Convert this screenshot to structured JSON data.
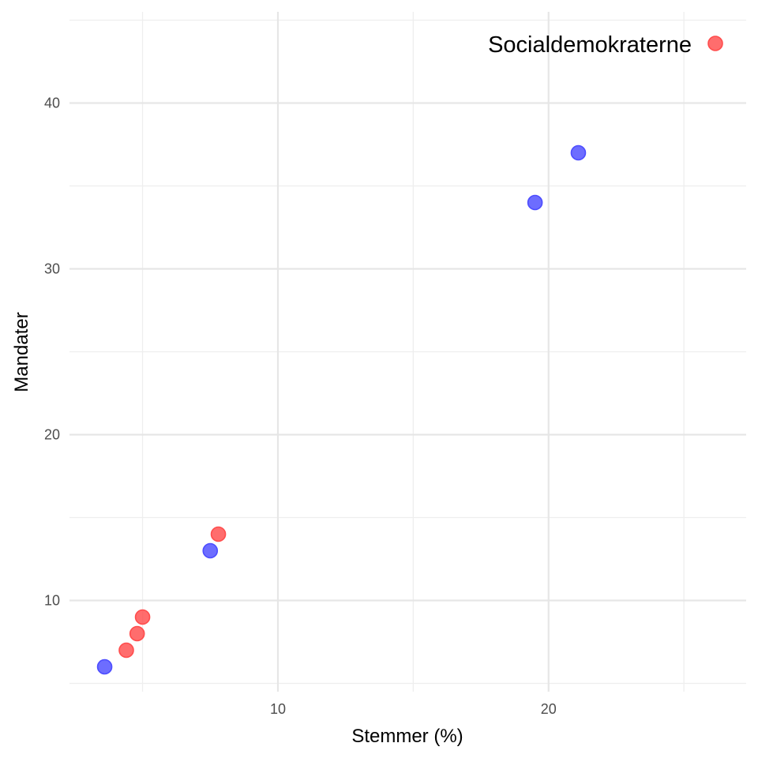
{
  "chart_data": {
    "type": "scatter",
    "title": "",
    "xlabel": "Stemmer (%)",
    "ylabel": "Mandater",
    "xlim": [
      2.3,
      27.3
    ],
    "ylim": [
      4.5,
      45.5
    ],
    "x_ticks_major": [
      10,
      20
    ],
    "x_ticks_minor": [
      5,
      15,
      25
    ],
    "y_ticks_major": [
      10,
      20,
      30,
      40
    ],
    "y_ticks_minor": [
      5,
      15,
      25,
      35,
      45
    ],
    "grid": true,
    "legend": {
      "position": "top-right",
      "entries": [
        {
          "label": "Socialdemokraterne",
          "color": "#ff4d4d"
        }
      ]
    },
    "series": [
      {
        "color": "#4d4dff",
        "points": [
          {
            "x": 3.6,
            "y": 6
          },
          {
            "x": 7.5,
            "y": 13
          },
          {
            "x": 19.5,
            "y": 34
          },
          {
            "x": 21.1,
            "y": 37
          }
        ]
      },
      {
        "name": "Socialdemokraterne",
        "color": "#ff4d4d",
        "points": [
          {
            "x": 4.4,
            "y": 7
          },
          {
            "x": 4.8,
            "y": 8
          },
          {
            "x": 5.0,
            "y": 9
          },
          {
            "x": 7.8,
            "y": 14
          }
        ]
      }
    ]
  }
}
